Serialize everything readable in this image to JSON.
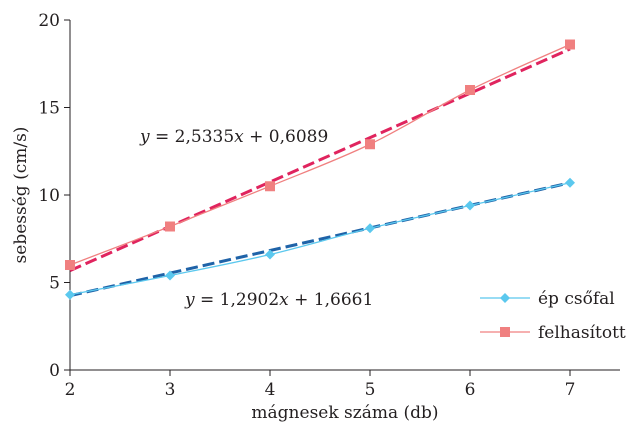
{
  "chart_data": {
    "type": "line",
    "xlabel": "mágnesek száma (db)",
    "ylabel": "sebesség (cm/s)",
    "xlim": [
      2,
      7
    ],
    "ylim": [
      0,
      20
    ],
    "x_ticks": [
      "2",
      "3",
      "4",
      "5",
      "6",
      "7"
    ],
    "y_ticks": [
      "0",
      "5",
      "10",
      "15",
      "20"
    ],
    "grid": false,
    "legend_position": "bottom-right",
    "x": [
      2,
      3,
      4,
      5,
      6,
      7
    ],
    "series": [
      {
        "name": "ép csőfal",
        "values": [
          4.3,
          5.4,
          6.6,
          8.1,
          9.4,
          10.7
        ],
        "color": "#5bc8ee",
        "marker": "diamond",
        "trendline": {
          "slope": 1.2902,
          "intercept": 1.6661,
          "color": "#1f63a8",
          "style": "dashed",
          "label": "y = 1,2902x + 1,6661"
        }
      },
      {
        "name": "felhasított",
        "values": [
          6.0,
          8.2,
          10.5,
          12.9,
          16.0,
          18.6
        ],
        "color": "#f08080",
        "marker": "square",
        "trendline": {
          "slope": 2.5335,
          "intercept": 0.6089,
          "color": "#e0245e",
          "style": "dashed",
          "label": "y = 2,5335x + 0,6089"
        }
      }
    ]
  }
}
